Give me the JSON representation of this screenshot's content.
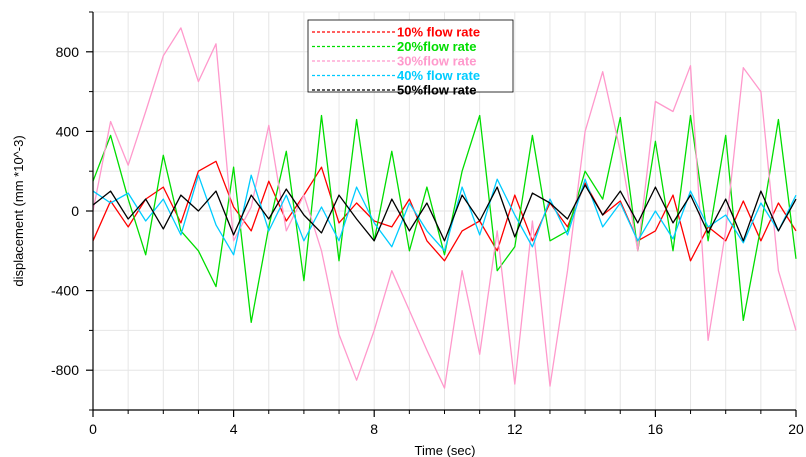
{
  "chart_data": {
    "type": "line",
    "title": "",
    "xlabel": "Time (sec)",
    "ylabel": "displacement (mm *10^-3)",
    "xlim": [
      0,
      20
    ],
    "ylim": [
      -1000,
      1000
    ],
    "x_ticks": [
      "0",
      "4",
      "8",
      "12",
      "16",
      "20"
    ],
    "y_ticks": [
      "800",
      "400",
      "0",
      "-400",
      "-800"
    ],
    "grid": true,
    "legend_position": "top-center",
    "x": [
      0,
      0.5,
      1,
      1.5,
      2,
      2.5,
      3,
      3.5,
      4,
      4.5,
      5,
      5.5,
      6,
      6.5,
      7,
      7.5,
      8,
      8.5,
      9,
      9.5,
      10,
      10.5,
      11,
      11.5,
      12,
      12.5,
      13,
      13.5,
      14,
      14.5,
      15,
      15.5,
      16,
      16.5,
      17,
      17.5,
      18,
      18.5,
      19,
      19.5,
      20
    ],
    "series": [
      {
        "name": "10% flow rate",
        "color": "#ff0000",
        "values": [
          -150,
          50,
          -80,
          60,
          120,
          -60,
          200,
          250,
          20,
          -100,
          150,
          -50,
          80,
          220,
          -60,
          40,
          -50,
          -80,
          60,
          -150,
          -250,
          -100,
          -50,
          -200,
          80,
          -150,
          40,
          -80,
          140,
          -20,
          50,
          -150,
          -100,
          80,
          -250,
          -80,
          -150,
          50,
          -150,
          40,
          -100
        ]
      },
      {
        "name": "20%flow rate",
        "color": "#00dd00",
        "values": [
          150,
          380,
          60,
          -220,
          280,
          -100,
          -200,
          -380,
          220,
          -560,
          -80,
          300,
          -350,
          480,
          -250,
          460,
          -150,
          300,
          -200,
          120,
          -220,
          200,
          480,
          -300,
          -180,
          380,
          -150,
          -100,
          200,
          60,
          470,
          -200,
          350,
          -200,
          480,
          -150,
          380,
          -550,
          -80,
          460,
          -240
        ]
      },
      {
        "name": "30%flow rate",
        "color": "#ff99cc",
        "values": [
          0,
          450,
          230,
          500,
          780,
          920,
          650,
          840,
          -150,
          20,
          430,
          -100,
          80,
          -200,
          -620,
          -850,
          -600,
          -300,
          -500,
          -700,
          -890,
          -300,
          -720,
          -100,
          -870,
          -50,
          -880,
          -300,
          400,
          700,
          300,
          -200,
          550,
          500,
          730,
          -650,
          -100,
          720,
          600,
          -300,
          -600
        ]
      },
      {
        "name": "40% flow rate",
        "color": "#00ccff",
        "values": [
          100,
          40,
          90,
          -50,
          60,
          -120,
          180,
          -70,
          -220,
          180,
          -100,
          80,
          -150,
          20,
          -150,
          120,
          -60,
          -180,
          40,
          -100,
          -200,
          120,
          -120,
          160,
          -20,
          -180,
          60,
          -120,
          160,
          -80,
          40,
          -150,
          0,
          -140,
          100,
          -80,
          -20,
          -160,
          40,
          -100,
          80
        ]
      },
      {
        "name": "50%flow rate",
        "color": "#000000",
        "values": [
          30,
          100,
          -40,
          60,
          -90,
          80,
          0,
          100,
          -120,
          80,
          -40,
          110,
          -20,
          -110,
          80,
          -40,
          -150,
          60,
          -100,
          40,
          -150,
          80,
          -50,
          120,
          -130,
          90,
          40,
          -40,
          130,
          -20,
          100,
          -60,
          120,
          -60,
          80,
          -110,
          60,
          -150,
          100,
          -100,
          60
        ]
      }
    ]
  }
}
